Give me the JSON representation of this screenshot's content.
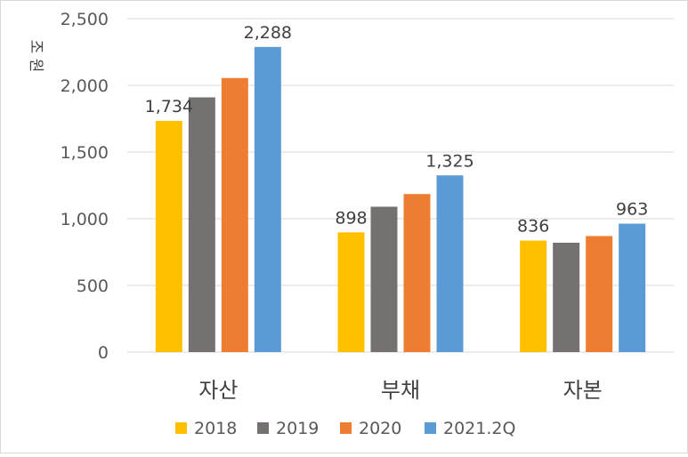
{
  "chart_data": {
    "type": "bar",
    "title": "",
    "xlabel": "",
    "ylabel": "조 원",
    "categories": [
      "자산",
      "부채",
      "자본"
    ],
    "series": [
      {
        "name": "2018",
        "values": [
          1734,
          898,
          836
        ],
        "color": "#FFC000"
      },
      {
        "name": "2019",
        "values": [
          1910,
          1090,
          820
        ],
        "color": "#767171"
      },
      {
        "name": "2020",
        "values": [
          2055,
          1185,
          870
        ],
        "color": "#ED7D31"
      },
      {
        "name": "2021.2Q",
        "values": [
          2288,
          1325,
          963
        ],
        "color": "#5B9BD5"
      }
    ],
    "data_labels": [
      {
        "series": "2018",
        "category": "자산",
        "text": "1,734"
      },
      {
        "series": "2021.2Q",
        "category": "자산",
        "text": "2,288"
      },
      {
        "series": "2018",
        "category": "부채",
        "text": "898"
      },
      {
        "series": "2021.2Q",
        "category": "부채",
        "text": "1,325"
      },
      {
        "series": "2018",
        "category": "자본",
        "text": "836"
      },
      {
        "series": "2021.2Q",
        "category": "자본",
        "text": "963"
      }
    ],
    "ylim": [
      0,
      2500
    ],
    "yticks": [
      0,
      500,
      1000,
      1500,
      2000,
      2500
    ],
    "ytick_labels": [
      "0",
      "500",
      "1,000",
      "1,500",
      "2,000",
      "2,500"
    ],
    "grid": true,
    "grid_color": "#d9d9d9",
    "legend": "bottom"
  }
}
